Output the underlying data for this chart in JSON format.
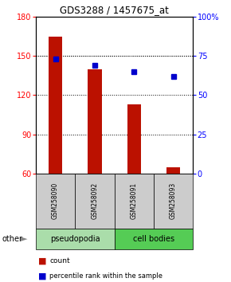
{
  "title": "GDS3288 / 1457675_at",
  "samples": [
    "GSM258090",
    "GSM258092",
    "GSM258091",
    "GSM258093"
  ],
  "counts": [
    165,
    140,
    113,
    65
  ],
  "percentile_ranks": [
    73,
    69,
    65,
    62
  ],
  "ylim_left": [
    60,
    180
  ],
  "yticks_left": [
    60,
    90,
    120,
    150,
    180
  ],
  "ylim_right": [
    0,
    100
  ],
  "yticks_right": [
    0,
    25,
    50,
    75,
    100
  ],
  "bar_color": "#bb1100",
  "dot_color": "#0000cc",
  "pseudopodia_color": "#aaddaa",
  "cell_bodies_color": "#55cc55",
  "sample_bg_color": "#cccccc",
  "legend_count_color": "#bb1100",
  "legend_pct_color": "#0000cc",
  "bar_width": 0.35
}
